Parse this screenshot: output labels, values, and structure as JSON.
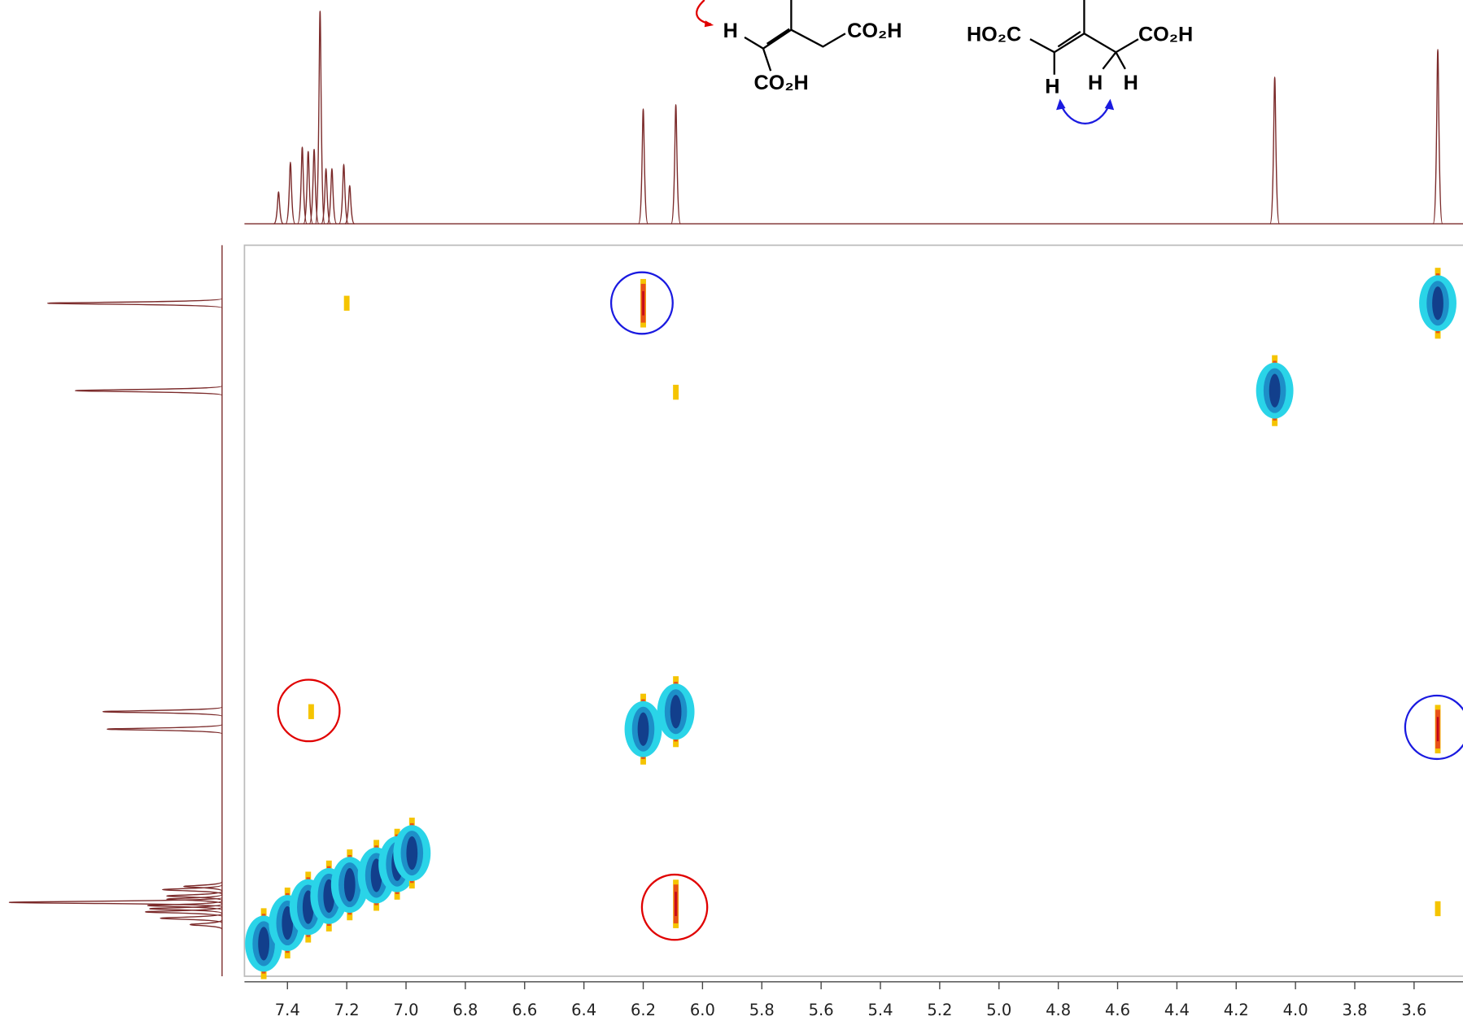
{
  "chart_data": {
    "type": "nmr2d",
    "xlim": [
      7.545,
      3.435
    ],
    "ylim": [
      3.155,
      7.755
    ],
    "xticks": [
      7.4,
      7.2,
      {
        "value": 7,
        "label": "7.0"
      },
      6.8,
      6.6,
      6.4,
      6.2,
      {
        "value": 6,
        "label": "6.0"
      },
      5.8,
      5.6,
      5.4,
      5.2,
      {
        "value": 5,
        "label": "5.0"
      },
      4.8,
      4.6,
      4.4,
      4.2,
      {
        "value": 4,
        "label": "4.0"
      },
      3.8,
      3.6
    ],
    "projection": {
      "color": "#7b2a2a",
      "shifts": [
        7.43,
        7.39,
        7.35,
        7.33,
        7.31,
        7.29,
        7.27,
        7.25,
        7.21,
        7.19,
        6.2,
        6.09,
        4.07,
        3.52
      ],
      "heights": [
        15,
        29,
        36,
        34,
        35,
        100,
        26,
        26,
        28,
        18,
        54,
        56,
        69,
        82
      ]
    },
    "diagonal_peaks": {
      "color": "#123f8c",
      "halo": "#2ad4e8",
      "x": [
        7.48,
        7.4,
        7.33,
        7.26,
        7.19,
        7.1,
        7.03,
        6.98,
        6.2,
        6.09,
        4.07,
        3.52
      ],
      "y": [
        7.55,
        7.42,
        7.32,
        7.25,
        7.18,
        7.12,
        7.05,
        6.98,
        6.2,
        6.09,
        4.07,
        3.52
      ]
    },
    "cross_peaks": {
      "color": "#e8501a",
      "edge": "#f5c400",
      "x": [
        6.2,
        3.52,
        6.09,
        7.32,
        6.09,
        3.52,
        7.2
      ],
      "y": [
        3.52,
        6.2,
        7.3,
        6.09,
        4.08,
        7.33,
        3.52
      ],
      "strong": [
        true,
        true,
        true,
        false,
        false,
        false,
        false
      ]
    }
  },
  "structures": [
    {
      "labels": [
        "H",
        "CO₂H",
        "CO₂H"
      ]
    },
    {
      "labels": [
        "HO₂C",
        "CO₂H",
        "H",
        "H",
        "H"
      ]
    }
  ]
}
